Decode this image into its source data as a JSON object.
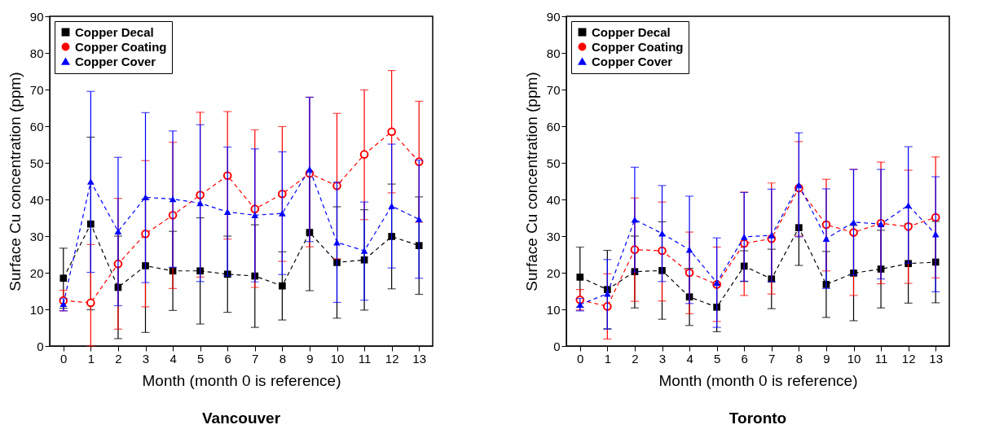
{
  "chart_data": [
    {
      "type": "line",
      "title": "Vancouver",
      "xlabel": "Month (month 0 is reference)",
      "ylabel": "Surface Cu concentration (ppm)",
      "x": [
        0,
        1,
        2,
        3,
        4,
        5,
        6,
        7,
        8,
        9,
        10,
        11,
        12,
        13
      ],
      "xlim": [
        -0.5,
        13.5
      ],
      "xticks": [
        0,
        1,
        2,
        3,
        4,
        5,
        6,
        7,
        8,
        9,
        10,
        11,
        12,
        13
      ],
      "ylim": [
        0,
        90
      ],
      "yticks": [
        0,
        10,
        20,
        30,
        40,
        50,
        60,
        70,
        80,
        90
      ],
      "grid": false,
      "legend": "top left",
      "line_style": "dashed",
      "series": [
        {
          "name": "Copper Decal",
          "color": "#000000",
          "marker": "square",
          "values": [
            18.5,
            33.3,
            16,
            21.9,
            20.5,
            20.5,
            19.6,
            19.1,
            16.4,
            31,
            22.8,
            23.5,
            29.9,
            27.4
          ],
          "errors": [
            [
              10.3,
              26.7
            ],
            [
              9.9,
              57
            ],
            [
              2,
              30
            ],
            [
              3.7,
              40.1
            ],
            [
              9.7,
              31.3
            ],
            [
              6,
              35
            ],
            [
              9.2,
              30
            ],
            [
              5.1,
              33.1
            ],
            [
              7.1,
              25.7
            ],
            [
              15.1,
              46.9
            ],
            [
              7.6,
              38
            ],
            [
              9.8,
              37.2
            ],
            [
              15.6,
              44.2
            ],
            [
              14.1,
              40.7
            ]
          ]
        },
        {
          "name": "Copper Coating",
          "color": "#ff0000",
          "marker": "circle",
          "values": [
            12.4,
            11.8,
            22.4,
            30.6,
            35.7,
            41.2,
            46.5,
            37.4,
            41.5,
            47.1,
            43.7,
            52.3,
            58.5,
            50.3
          ],
          "errors": [
            [
              9.6,
              15.2
            ],
            [
              0,
              27.7
            ],
            [
              4.6,
              40.3
            ],
            [
              10.7,
              50.6
            ],
            [
              15.7,
              55.6
            ],
            [
              18.8,
              63.8
            ],
            [
              29.2,
              64
            ],
            [
              16,
              59
            ],
            [
              23.1,
              59.9
            ],
            [
              27.1,
              67.9
            ],
            [
              23.8,
              63.5
            ],
            [
              34.5,
              69.9
            ],
            [
              41.8,
              75.2
            ],
            [
              33.8,
              66.8
            ]
          ]
        },
        {
          "name": "Copper Cover",
          "color": "#0000ff",
          "marker": "triangle",
          "values": [
            11.5,
            44.9,
            31.3,
            40.6,
            40.1,
            39,
            36.6,
            35.7,
            36.2,
            48.3,
            28.3,
            26,
            38.2,
            34.6
          ],
          "errors": [
            [
              9.6,
              12.9
            ],
            [
              20.1,
              69.5
            ],
            [
              11,
              51.5
            ],
            [
              17.3,
              63.7
            ],
            [
              21.5,
              58.7
            ],
            [
              17.6,
              60.4
            ],
            [
              19.1,
              54.3
            ],
            [
              17.5,
              53.8
            ],
            [
              19.5,
              53
            ],
            [
              28.5,
              67.9
            ],
            [
              11.9,
              44.7
            ],
            [
              12.5,
              39.3
            ],
            [
              21.3,
              55.1
            ],
            [
              18.5,
              50.7
            ]
          ]
        }
      ]
    },
    {
      "type": "line",
      "title": "Toronto",
      "xlabel": "Month (month 0 is reference)",
      "ylabel": "Surface Cu concentration (ppm)",
      "x": [
        0,
        1,
        2,
        3,
        4,
        5,
        6,
        7,
        8,
        9,
        10,
        11,
        12,
        13
      ],
      "xlim": [
        -0.5,
        13.5
      ],
      "xticks": [
        0,
        1,
        2,
        3,
        4,
        5,
        6,
        7,
        8,
        9,
        10,
        11,
        12,
        13
      ],
      "ylim": [
        0,
        90
      ],
      "yticks": [
        0,
        10,
        20,
        30,
        40,
        50,
        60,
        70,
        80,
        90
      ],
      "grid": false,
      "legend": "top left",
      "line_style": "dashed",
      "series": [
        {
          "name": "Copper Decal",
          "color": "#000000",
          "marker": "square",
          "values": [
            18.8,
            15.4,
            20.3,
            20.6,
            13.4,
            10.6,
            21.8,
            18.3,
            32.3,
            16.8,
            19.9,
            21,
            22.5,
            22.9
          ],
          "errors": [
            [
              10.6,
              27
            ],
            [
              4.7,
              26.1
            ],
            [
              10.4,
              30
            ],
            [
              7.3,
              33.9
            ],
            [
              5.6,
              21.2
            ],
            [
              3.9,
              17.3
            ],
            [
              17.6,
              26
            ],
            [
              10.2,
              26.4
            ],
            [
              22,
              42.6
            ],
            [
              7.8,
              25.8
            ],
            [
              6.9,
              32.9
            ],
            [
              10.4,
              31.6
            ],
            [
              11.7,
              33.3
            ],
            [
              11.8,
              34
            ]
          ]
        },
        {
          "name": "Copper Coating",
          "color": "#ff0000",
          "marker": "circle",
          "values": [
            12.6,
            10.8,
            26.3,
            26,
            20,
            16.8,
            28,
            29.3,
            43.1,
            33.1,
            31,
            33.5,
            32.6,
            35.1
          ],
          "errors": [
            [
              9.8,
              15.4
            ],
            [
              1.9,
              19.7
            ],
            [
              12.2,
              40.4
            ],
            [
              12.3,
              39.3
            ],
            [
              8.8,
              31.1
            ],
            [
              6.7,
              27
            ],
            [
              13.8,
              42
            ],
            [
              14.2,
              44.5
            ],
            [
              30,
              55.8
            ],
            [
              20.5,
              45.5
            ],
            [
              13.8,
              48.2
            ],
            [
              17,
              50.2
            ],
            [
              17.1,
              48
            ],
            [
              18.6,
              51.6
            ]
          ]
        },
        {
          "name": "Copper Cover",
          "color": "#0000ff",
          "marker": "triangle",
          "values": [
            11.3,
            14.3,
            34.5,
            30.7,
            26.3,
            17.3,
            29.8,
            30.2,
            44,
            29.3,
            33.8,
            33.3,
            38.4,
            30.5
          ],
          "errors": [
            [
              9.6,
              13
            ],
            [
              4.6,
              23.6
            ],
            [
              20.2,
              48.8
            ],
            [
              17.6,
              43.8
            ],
            [
              11.6,
              40.9
            ],
            [
              5.1,
              29.5
            ],
            [
              17.7,
              41.9
            ],
            [
              17.6,
              42.8
            ],
            [
              29.8,
              58.2
            ],
            [
              15.7,
              42.9
            ],
            [
              19.4,
              48.2
            ],
            [
              18.3,
              48.2
            ],
            [
              22.6,
              54.4
            ],
            [
              14.8,
              46.2
            ]
          ]
        }
      ]
    }
  ]
}
